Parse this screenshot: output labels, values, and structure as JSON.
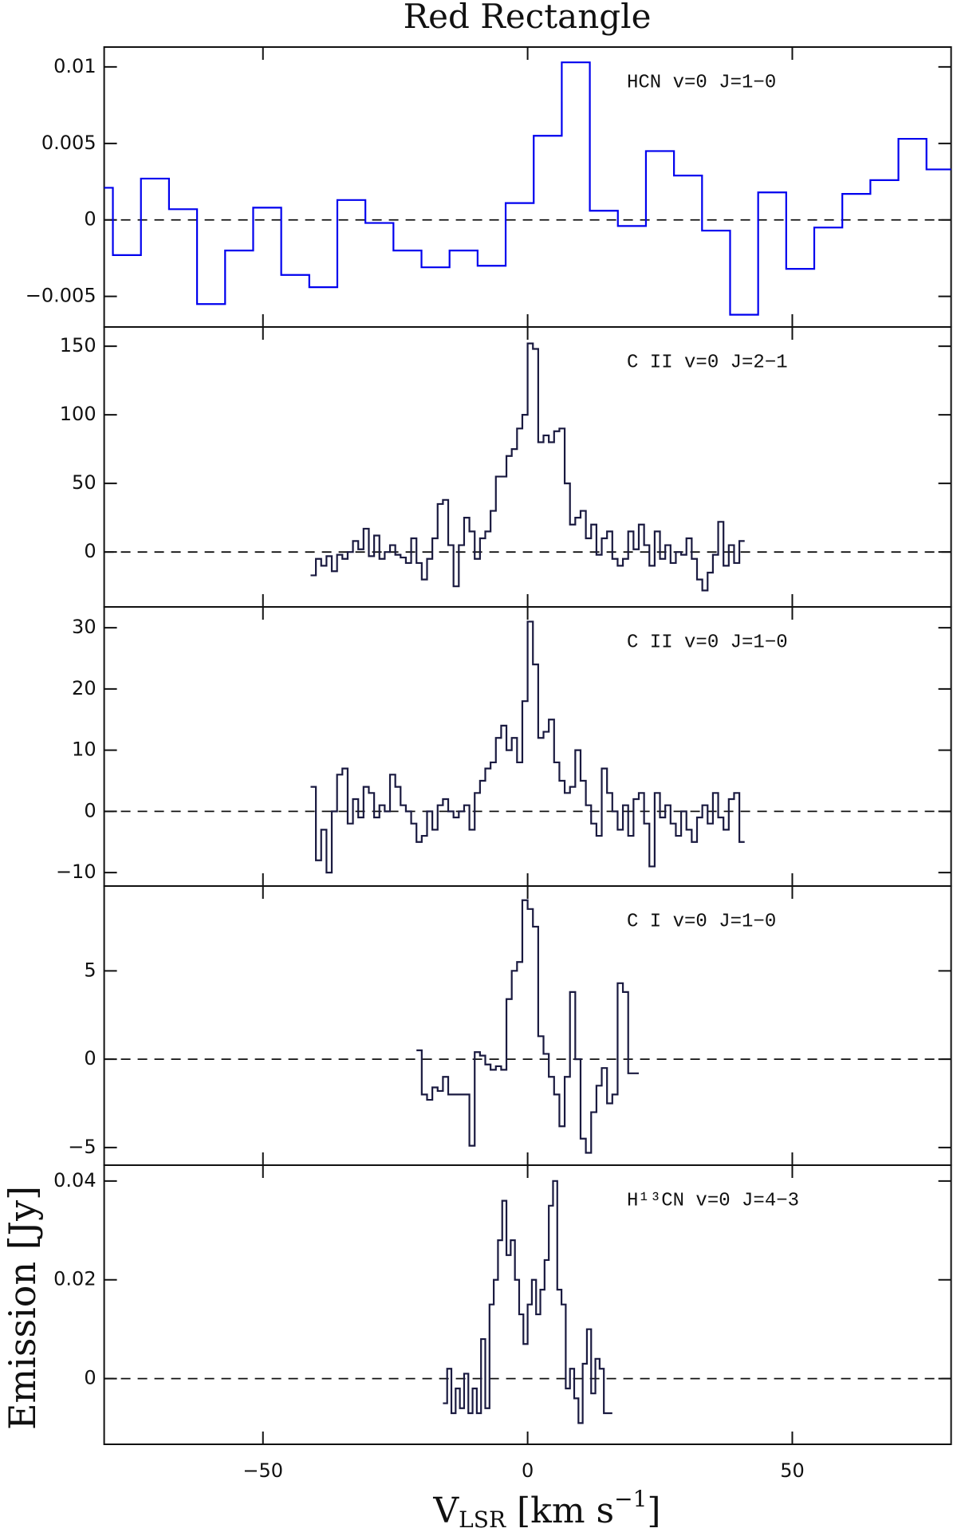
{
  "figure": {
    "title": "Red Rectangle",
    "xlabel_parts": [
      "V",
      "LSR",
      " [km s",
      "−1",
      "]"
    ],
    "ylabel": "Emission [Jy]"
  },
  "chart_data": [
    {
      "type": "step",
      "annotation": "HCN v=0 J=1−0",
      "color": "#0000ee",
      "x": [
        -81.0,
        -75.7,
        -70.4,
        -65.1,
        -59.8,
        -54.5,
        -49.2,
        -43.9,
        -38.6,
        -33.3,
        -28.0,
        -22.7,
        -17.4,
        -12.1,
        -6.8,
        -1.5,
        3.8,
        9.1,
        14.4,
        19.7,
        25.0,
        30.3,
        35.6,
        40.9,
        46.2,
        51.5,
        56.8,
        62.1,
        67.4,
        72.7,
        78.0
      ],
      "values": [
        0.0021,
        -0.0023,
        0.0027,
        0.0007,
        -0.0055,
        -0.002,
        0.0008,
        -0.0036,
        -0.0044,
        0.0013,
        -0.0002,
        -0.002,
        -0.0031,
        -0.002,
        -0.003,
        0.0011,
        0.0055,
        0.0103,
        0.0006,
        -0.0004,
        0.0045,
        0.0029,
        -0.0007,
        -0.0062,
        0.0018,
        -0.0032,
        -0.0005,
        0.0017,
        0.0026,
        0.0053,
        0.0033
      ],
      "xlim": [
        -80,
        80
      ],
      "ylim": [
        -0.007,
        0.0113
      ],
      "hline": 0,
      "xticks": [
        {
          "value": -50,
          "label": "−50"
        },
        0,
        50
      ],
      "yticks": [
        {
          "value": -0.005,
          "label": "−0.005"
        },
        0,
        0.005,
        0.01
      ],
      "show_xtick_labels": false
    },
    {
      "type": "step",
      "annotation": "C II v=0 J=2−1",
      "color": "#1a1a40",
      "x": [
        -40.5,
        -39.5,
        -38.5,
        -37.5,
        -36.5,
        -35.5,
        -34.5,
        -33.5,
        -32.5,
        -31.5,
        -30.5,
        -29.5,
        -28.5,
        -27.5,
        -26.5,
        -25.5,
        -24.5,
        -23.5,
        -22.5,
        -21.5,
        -20.5,
        -19.5,
        -18.5,
        -17.5,
        -16.5,
        -15.5,
        -14.5,
        -13.5,
        -12.5,
        -11.5,
        -10.5,
        -9.5,
        -8.5,
        -7.5,
        -6.5,
        -5.5,
        -4.5,
        -3.5,
        -2.5,
        -1.5,
        -0.5,
        0.5,
        1.5,
        2.5,
        3.5,
        4.5,
        5.5,
        6.5,
        7.5,
        8.5,
        9.5,
        10.5,
        11.5,
        12.5,
        13.5,
        14.5,
        15.5,
        16.5,
        17.5,
        18.5,
        19.5,
        20.5,
        21.5,
        22.5,
        23.5,
        24.5,
        25.5,
        26.5,
        27.5,
        28.5,
        29.5,
        30.5,
        31.5,
        32.5,
        33.5,
        34.5,
        35.5,
        36.5,
        37.5,
        38.5,
        39.5,
        40.5
      ],
      "values": [
        -17,
        -5,
        -10,
        -3,
        -14,
        -2,
        -5,
        0,
        8,
        2,
        17,
        -3,
        12,
        -5,
        0,
        5,
        -2,
        -4,
        -8,
        10,
        -8,
        -20,
        -5,
        10,
        35,
        38,
        5,
        -25,
        5,
        25,
        15,
        -5,
        10,
        15,
        30,
        55,
        55,
        70,
        75,
        90,
        100,
        152,
        148,
        80,
        85,
        80,
        88,
        90,
        50,
        20,
        25,
        30,
        10,
        20,
        -2,
        10,
        15,
        -5,
        -10,
        -5,
        15,
        2,
        20,
        5,
        -10,
        15,
        -5,
        5,
        -8,
        0,
        -2,
        10,
        -5,
        -20,
        -28,
        -15,
        -2,
        22,
        -10,
        5,
        -8,
        8
      ],
      "xlim": [
        -80,
        80
      ],
      "ylim": [
        -40,
        164
      ],
      "hline": 0,
      "xticks": [
        {
          "value": -50,
          "label": "−50"
        },
        0,
        50
      ],
      "yticks": [
        0,
        50,
        100,
        150
      ],
      "show_xtick_labels": false
    },
    {
      "type": "step",
      "annotation": "C II v=0 J=1−0",
      "color": "#1a1a40",
      "x": [
        -40.5,
        -39.5,
        -38.5,
        -37.5,
        -36.5,
        -35.5,
        -34.5,
        -33.5,
        -32.5,
        -31.5,
        -30.5,
        -29.5,
        -28.5,
        -27.5,
        -26.5,
        -25.5,
        -24.5,
        -23.5,
        -22.5,
        -21.5,
        -20.5,
        -19.5,
        -18.5,
        -17.5,
        -16.5,
        -15.5,
        -14.5,
        -13.5,
        -12.5,
        -11.5,
        -10.5,
        -9.5,
        -8.5,
        -7.5,
        -6.5,
        -5.5,
        -4.5,
        -3.5,
        -2.5,
        -1.5,
        -0.5,
        0.5,
        1.5,
        2.5,
        3.5,
        4.5,
        5.5,
        6.5,
        7.5,
        8.5,
        9.5,
        10.5,
        11.5,
        12.5,
        13.5,
        14.5,
        15.5,
        16.5,
        17.5,
        18.5,
        19.5,
        20.5,
        21.5,
        22.5,
        23.5,
        24.5,
        25.5,
        26.5,
        27.5,
        28.5,
        29.5,
        30.5,
        31.5,
        32.5,
        33.5,
        34.5,
        35.5,
        36.5,
        37.5,
        38.5,
        39.5,
        40.5
      ],
      "values": [
        4,
        -8,
        -3,
        -10,
        0,
        6,
        7,
        -2,
        2,
        -1,
        4,
        3,
        -1,
        1,
        0,
        6,
        4,
        1,
        0,
        -2,
        -5,
        -4,
        0,
        -3,
        1,
        2,
        0,
        -1,
        0,
        1,
        -3,
        3,
        5,
        7,
        8,
        12,
        14,
        10,
        12,
        8,
        18,
        31,
        24,
        12,
        13,
        15,
        8,
        5,
        3,
        4,
        10,
        5,
        1,
        -2,
        -4,
        7,
        3,
        0,
        -3,
        1,
        -4,
        2,
        3,
        -2,
        -9,
        3,
        -1,
        1,
        -2,
        -4,
        0,
        -3,
        -5,
        -1,
        1,
        -2,
        3,
        -1,
        -3,
        2,
        3,
        -5
      ],
      "xlim": [
        -80,
        80
      ],
      "ylim": [
        -12.2,
        33.4
      ],
      "hline": 0,
      "xticks": [
        {
          "value": -50,
          "label": "−50"
        },
        0,
        50
      ],
      "yticks": [
        {
          "value": -10,
          "label": "−10"
        },
        0,
        10,
        20,
        30
      ],
      "show_xtick_labels": false
    },
    {
      "type": "step",
      "annotation": "C I v=0 J=1−0",
      "color": "#1a1a40",
      "x": [
        -20.5,
        -19.5,
        -18.5,
        -17.5,
        -16.5,
        -15.5,
        -14.5,
        -13.5,
        -12.5,
        -11.5,
        -10.5,
        -9.5,
        -8.5,
        -7.5,
        -6.5,
        -5.5,
        -4.5,
        -3.5,
        -2.5,
        -1.5,
        -0.5,
        0.5,
        1.5,
        2.5,
        3.5,
        4.5,
        5.5,
        6.5,
        7.5,
        8.5,
        9.5,
        10.5,
        11.5,
        12.5,
        13.5,
        14.5,
        15.5,
        16.5,
        17.5,
        18.5,
        19.5,
        20.5
      ],
      "values": [
        0.5,
        -2,
        -2.3,
        -1.6,
        -1.8,
        -1,
        -2,
        -2,
        -2,
        -2,
        -4.9,
        0.4,
        0.2,
        -0.3,
        -0.6,
        -0.4,
        -0.6,
        3.4,
        5,
        5.5,
        9,
        8.5,
        7.5,
        1.3,
        0.3,
        -1,
        -2,
        -3.8,
        -1,
        3.8,
        0,
        -4.5,
        -5.3,
        -3,
        -1.5,
        -0.5,
        -2.5,
        -2,
        4.3,
        3.8,
        -0.8,
        -0.8
      ],
      "xlim": [
        -80,
        80
      ],
      "ylim": [
        -6,
        9.8
      ],
      "hline": 0,
      "xticks": [
        {
          "value": -50,
          "label": "−50"
        },
        0,
        50
      ],
      "yticks": [
        {
          "value": -5,
          "label": "−5"
        },
        0,
        5
      ],
      "show_xtick_labels": false
    },
    {
      "type": "step",
      "annotation": "H¹³CN v=0 J=4−3",
      "color": "#1a1a40",
      "x": [
        -15.6,
        -14.8,
        -14.0,
        -13.2,
        -12.4,
        -11.6,
        -10.8,
        -10.0,
        -9.2,
        -8.4,
        -7.6,
        -6.8,
        -6.0,
        -5.2,
        -4.4,
        -3.6,
        -2.8,
        -2.0,
        -1.2,
        -0.4,
        0.4,
        1.2,
        2.0,
        2.8,
        3.6,
        4.4,
        5.2,
        6.0,
        6.8,
        7.6,
        8.4,
        9.2,
        10.0,
        10.8,
        11.6,
        12.4,
        13.2,
        14.0,
        14.8,
        15.6
      ],
      "values": [
        -0.005,
        0.002,
        -0.007,
        -0.002,
        -0.006,
        0.001,
        -0.007,
        -0.002,
        -0.007,
        0.008,
        -0.006,
        0.015,
        0.02,
        0.028,
        0.036,
        0.025,
        0.028,
        0.02,
        0.013,
        0.007,
        0.015,
        0.02,
        0.013,
        0.018,
        0.024,
        0.035,
        0.04,
        0.018,
        0.015,
        -0.002,
        0.002,
        -0.004,
        -0.009,
        0.003,
        0.01,
        -0.003,
        0.004,
        0.002,
        -0.007,
        -0.007
      ],
      "xlim": [
        -80,
        80
      ],
      "ylim": [
        -0.0133,
        0.0432
      ],
      "hline": 0,
      "xticks": [
        {
          "value": -50,
          "label": "−50"
        },
        0,
        50
      ],
      "yticks": [
        0,
        0.02,
        0.04
      ],
      "show_xtick_labels": true
    }
  ]
}
